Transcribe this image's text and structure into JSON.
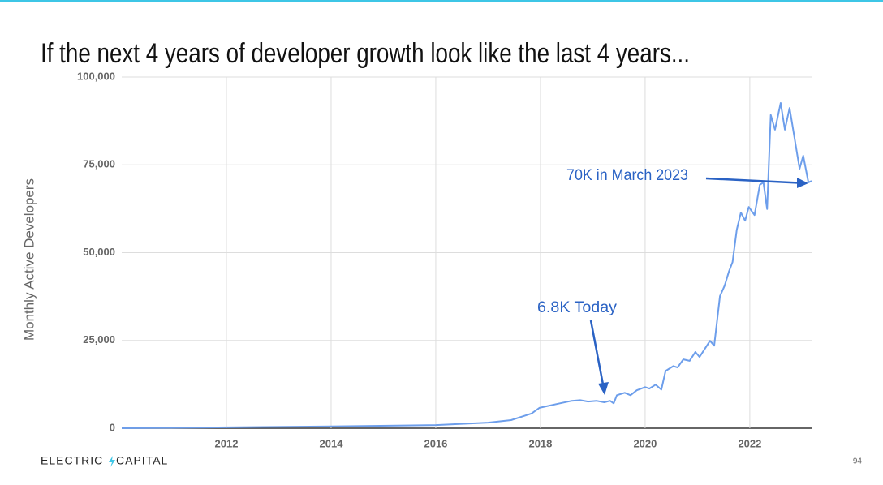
{
  "chart_data": {
    "type": "line",
    "title": "If the next 4 years of developer growth look like the last 4 years...",
    "y_label": "Monthly Active Developers",
    "annotations": [
      "70K in March 2023",
      "6.8K Today"
    ],
    "x": [
      2010,
      2014,
      2016,
      2017.0,
      2017.44,
      2017.83,
      2017.98,
      2018.37,
      2018.6,
      2018.76,
      2018.91,
      2019.07,
      2019.22,
      2019.33,
      2019.4,
      2019.46,
      2019.61,
      2019.72,
      2019.84,
      2020.0,
      2020.08,
      2020.2,
      2020.31,
      2020.39,
      2020.54,
      2020.62,
      2020.73,
      2020.85,
      2020.96,
      2021.04,
      2021.24,
      2021.32,
      2021.43,
      2021.52,
      2021.6,
      2021.67,
      2021.75,
      2021.83,
      2021.91,
      2021.98,
      2022.09,
      2022.19,
      2022.26,
      2022.33,
      2022.4,
      2022.48,
      2022.59,
      2022.67,
      2022.76,
      2022.95,
      2023.02,
      2023.12,
      2023.18
    ],
    "values": [
      0,
      500,
      900,
      1600,
      2300,
      4200,
      5800,
      7100,
      7800,
      8000,
      7600,
      7800,
      7400,
      7800,
      7100,
      9400,
      10100,
      9400,
      10800,
      11700,
      11300,
      12400,
      11000,
      16300,
      17700,
      17300,
      19600,
      19200,
      21700,
      20300,
      24900,
      23500,
      37600,
      40600,
      44600,
      47300,
      56500,
      61400,
      59100,
      63000,
      60700,
      69300,
      70000,
      62400,
      89200,
      85000,
      92600,
      85000,
      91200,
      73900,
      77600,
      70000,
      70400
    ],
    "color": "#6d9eeb",
    "xlim": [
      2010,
      2023.18
    ],
    "xticks": [
      2012,
      2014,
      2016,
      2018,
      2020,
      2022
    ],
    "ylim": [
      0,
      100000
    ],
    "yticks": [
      0,
      {
        "value": 25000,
        "label": "25,000"
      },
      {
        "value": 50000,
        "label": "50,000"
      },
      {
        "value": 75000,
        "label": "75,000"
      },
      {
        "value": 100000,
        "label": "100,000"
      }
    ],
    "grid": true
  },
  "footer": {
    "brand": [
      "ELECTRIC",
      "CAPITAL"
    ],
    "page": "94"
  }
}
